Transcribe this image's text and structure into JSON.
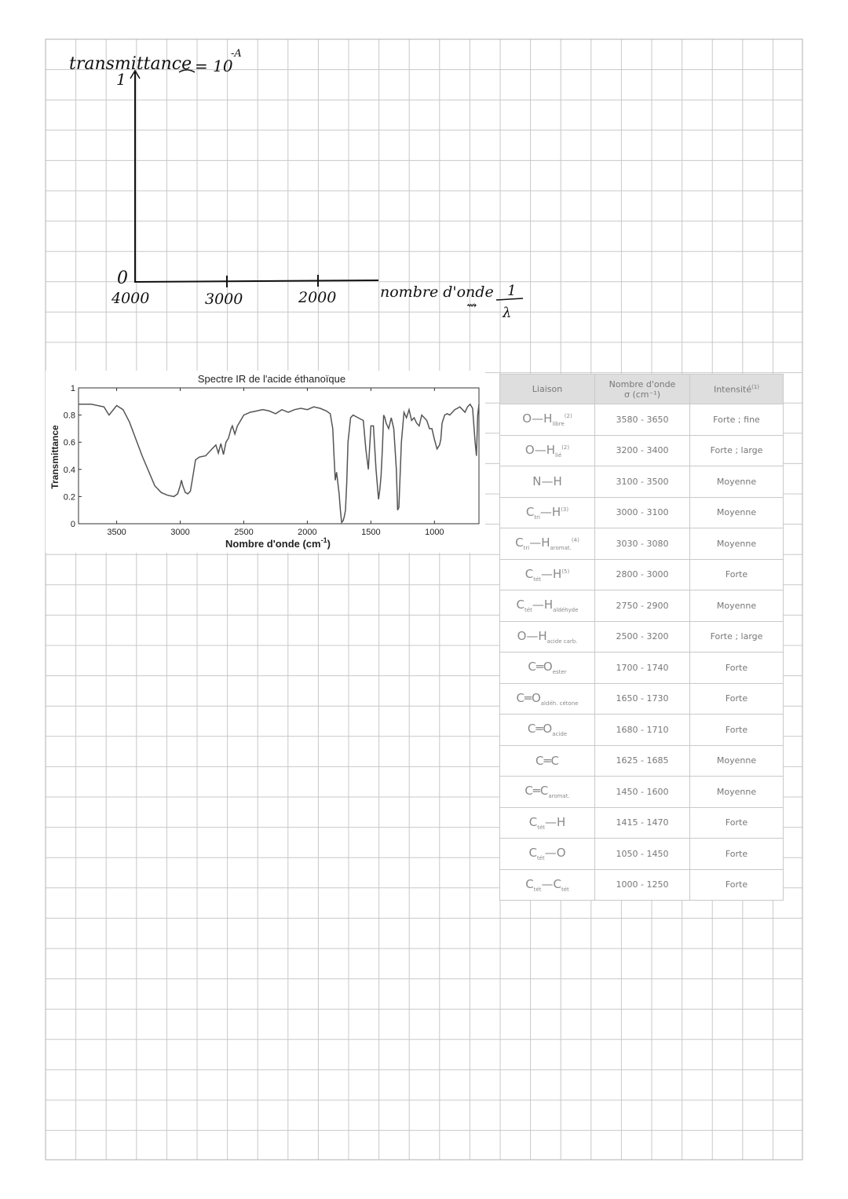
{
  "sketch": {
    "y_axis_label": "transmittance",
    "y_axis_note": "= 10",
    "y_axis_note_exp": "-A",
    "y_top_value": "1",
    "origin_label": "0",
    "x_ticks": [
      "4000",
      "3000",
      "2000"
    ],
    "x_axis_label": "nombre d'onde",
    "x_axis_note": "⇝",
    "x_axis_fraction_num": "1",
    "x_axis_fraction_den": "λ"
  },
  "chart_data": {
    "type": "line",
    "title": "Spectre IR de l'acide éthanoïque",
    "xlabel": "Nombre d'onde (cm",
    "xlabel_exp": "-1",
    "xlabel_end": ")",
    "ylabel": "Transmittance",
    "xlim": [
      3800,
      650
    ],
    "ylim": [
      0,
      1
    ],
    "x_ticks": [
      3500,
      3000,
      2500,
      2000,
      1500,
      1000
    ],
    "y_ticks": [
      "0",
      "0.2",
      "0.4",
      "0.6",
      "0.8",
      "1"
    ],
    "series": [
      {
        "x": [
          3800,
          3700,
          3600,
          3560,
          3500,
          3450,
          3400,
          3300,
          3200,
          3150,
          3100,
          3050,
          3020,
          3000,
          2990,
          2980,
          2960,
          2940,
          2920,
          2900,
          2880,
          2850,
          2800,
          2750,
          2720,
          2700,
          2680,
          2660,
          2640,
          2620,
          2600,
          2590,
          2570,
          2550,
          2500,
          2450,
          2400,
          2350,
          2300,
          2250,
          2200,
          2150,
          2100,
          2050,
          2000,
          1950,
          1900,
          1850,
          1820,
          1800,
          1790,
          1780,
          1770,
          1760,
          1750,
          1740,
          1730,
          1720,
          1710,
          1700,
          1690,
          1680,
          1660,
          1640,
          1600,
          1560,
          1540,
          1520,
          1500,
          1480,
          1460,
          1440,
          1430,
          1420,
          1410,
          1400,
          1390,
          1380,
          1360,
          1340,
          1320,
          1300,
          1290,
          1280,
          1260,
          1240,
          1220,
          1200,
          1180,
          1160,
          1140,
          1120,
          1100,
          1060,
          1040,
          1020,
          1000,
          980,
          960,
          950,
          940,
          920,
          900,
          880,
          860,
          840,
          820,
          800,
          780,
          760,
          740,
          720,
          700,
          680,
          670,
          660,
          650
        ],
        "values": [
          0.88,
          0.88,
          0.86,
          0.8,
          0.87,
          0.84,
          0.75,
          0.5,
          0.28,
          0.23,
          0.21,
          0.2,
          0.22,
          0.28,
          0.32,
          0.28,
          0.23,
          0.22,
          0.24,
          0.35,
          0.47,
          0.49,
          0.5,
          0.55,
          0.58,
          0.52,
          0.59,
          0.51,
          0.6,
          0.63,
          0.7,
          0.72,
          0.66,
          0.72,
          0.8,
          0.82,
          0.83,
          0.84,
          0.83,
          0.81,
          0.84,
          0.82,
          0.84,
          0.85,
          0.84,
          0.86,
          0.85,
          0.83,
          0.81,
          0.7,
          0.5,
          0.32,
          0.38,
          0.3,
          0.22,
          0.1,
          0.01,
          0.02,
          0.05,
          0.1,
          0.3,
          0.6,
          0.78,
          0.8,
          0.78,
          0.76,
          0.55,
          0.4,
          0.72,
          0.72,
          0.4,
          0.18,
          0.25,
          0.35,
          0.55,
          0.8,
          0.78,
          0.74,
          0.7,
          0.78,
          0.7,
          0.4,
          0.1,
          0.12,
          0.6,
          0.82,
          0.78,
          0.84,
          0.76,
          0.78,
          0.74,
          0.72,
          0.8,
          0.76,
          0.7,
          0.7,
          0.62,
          0.55,
          0.58,
          0.62,
          0.74,
          0.8,
          0.81,
          0.8,
          0.82,
          0.84,
          0.85,
          0.86,
          0.84,
          0.82,
          0.86,
          0.88,
          0.85,
          0.6,
          0.5,
          0.8,
          0.88
        ]
      }
    ]
  },
  "table": {
    "headers": {
      "bond": "Liaison",
      "wavenumber_l1": "Nombre d'onde",
      "wavenumber_l2": "σ (cm⁻¹)",
      "intensity": "Intensité",
      "intensity_note": "(1)"
    },
    "rows": [
      {
        "a": "O",
        "link": "—",
        "b": "H",
        "sub_b": "libre",
        "note": "(2)",
        "range": "3580 - 3650",
        "intensity": "Forte ; fine"
      },
      {
        "a": "O",
        "link": "—",
        "b": "H",
        "sub_b": "lié",
        "note": "(2)",
        "range": "3200 - 3400",
        "intensity": "Forte ; large"
      },
      {
        "a": "N",
        "link": "—",
        "b": "H",
        "range": "3100 - 3500",
        "intensity": "Moyenne"
      },
      {
        "a": "C",
        "sub_a": "tri",
        "link": "—",
        "b": "H",
        "note": "(3)",
        "range": "3000 - 3100",
        "intensity": "Moyenne"
      },
      {
        "a": "C",
        "sub_a": "tri",
        "link": "—",
        "b": "H",
        "sub_b": "aromat.",
        "note": "(4)",
        "range": "3030 - 3080",
        "intensity": "Moyenne"
      },
      {
        "a": "C",
        "sub_a": "tét",
        "link": "—",
        "b": "H",
        "note": "(5)",
        "range": "2800 - 3000",
        "intensity": "Forte"
      },
      {
        "a": "C",
        "sub_a": "tét",
        "link": "—",
        "b": "H",
        "sub_b": "aldéhyde",
        "range": "2750 - 2900",
        "intensity": "Moyenne"
      },
      {
        "a": "O",
        "link": "—",
        "b": "H",
        "sub_b": "acide carb.",
        "range": "2500 - 3200",
        "intensity": "Forte ; large"
      },
      {
        "a": "C",
        "link": "═",
        "b": "O",
        "sub_b": "ester",
        "range": "1700 - 1740",
        "intensity": "Forte"
      },
      {
        "a": "C",
        "link": "═",
        "b": "O",
        "sub_b": "aldéh. cétone",
        "range": "1650 - 1730",
        "intensity": "Forte"
      },
      {
        "a": "C",
        "link": "═",
        "b": "O",
        "sub_b": "acide",
        "range": "1680 - 1710",
        "intensity": "Forte"
      },
      {
        "a": "C",
        "link": "═",
        "b": "C",
        "range": "1625 - 1685",
        "intensity": "Moyenne"
      },
      {
        "a": "C",
        "link": "═",
        "b": "C",
        "sub_b": "aromat.",
        "range": "1450 - 1600",
        "intensity": "Moyenne"
      },
      {
        "a": "C",
        "sub_a": "tét",
        "link": "—",
        "b": "H",
        "range": "1415 - 1470",
        "intensity": "Forte"
      },
      {
        "a": "C",
        "sub_a": "tét",
        "link": "—",
        "b": "O",
        "range": "1050 - 1450",
        "intensity": "Forte"
      },
      {
        "a": "C",
        "sub_a": "tét",
        "link": "—",
        "b": "C",
        "sub_b": "tét",
        "range": "1000 - 1250",
        "intensity": "Forte"
      }
    ]
  },
  "colors": {
    "grid": "#c8c8c8",
    "ink": "#111111",
    "spectrum": "#555555",
    "table_header_bg": "#dedede"
  }
}
